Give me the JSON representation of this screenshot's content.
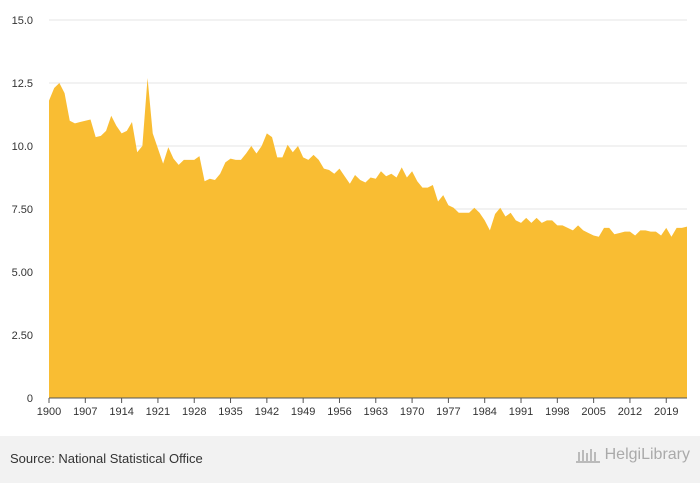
{
  "chart_data": {
    "type": "area",
    "title": "",
    "xlabel": "",
    "ylabel": "",
    "xlim": [
      1900,
      2023
    ],
    "ylim": [
      0,
      15
    ],
    "x_ticks": [
      "1900",
      "1907",
      "1914",
      "1921",
      "1928",
      "1935",
      "1942",
      "1949",
      "1956",
      "1963",
      "1970",
      "1977",
      "1984",
      "1991",
      "1998",
      "2005",
      "2012",
      "2019"
    ],
    "y_ticks": [
      "0",
      "2.50",
      "5.00",
      "7.50",
      "10.0",
      "12.5",
      "15.0"
    ],
    "grid": "horizontal",
    "color": "#f9bd33",
    "series": [
      {
        "x": [
          1900,
          1901,
          1902,
          1903,
          1904,
          1905,
          1906,
          1907,
          1908,
          1909,
          1910,
          1911,
          1912,
          1913,
          1914,
          1915,
          1916,
          1917,
          1918,
          1919,
          1920,
          1921,
          1922,
          1923,
          1924,
          1925,
          1926,
          1927,
          1928,
          1929,
          1930,
          1931,
          1932,
          1933,
          1934,
          1935,
          1936,
          1937,
          1938,
          1939,
          1940,
          1941,
          1942,
          1943,
          1944,
          1945,
          1946,
          1947,
          1948,
          1949,
          1950,
          1951,
          1952,
          1953,
          1954,
          1955,
          1956,
          1957,
          1958,
          1959,
          1960,
          1961,
          1962,
          1963,
          1964,
          1965,
          1966,
          1967,
          1968,
          1969,
          1970,
          1971,
          1972,
          1973,
          1974,
          1975,
          1976,
          1977,
          1978,
          1979,
          1980,
          1981,
          1982,
          1983,
          1984,
          1985,
          1986,
          1987,
          1988,
          1989,
          1990,
          1991,
          1992,
          1993,
          1994,
          1995,
          1996,
          1997,
          1998,
          1999,
          2000,
          2001,
          2002,
          2003,
          2004,
          2005,
          2006,
          2007,
          2008,
          2009,
          2010,
          2011,
          2012,
          2013,
          2014,
          2015,
          2016,
          2017,
          2018,
          2019,
          2020,
          2021,
          2022,
          2023
        ],
        "values": [
          11.8,
          12.3,
          12.5,
          12.1,
          11.0,
          10.9,
          10.95,
          11.0,
          11.05,
          10.35,
          10.4,
          10.6,
          11.2,
          10.8,
          10.5,
          10.6,
          10.95,
          9.75,
          10.0,
          12.7,
          10.5,
          9.9,
          9.3,
          9.95,
          9.5,
          9.25,
          9.45,
          9.45,
          9.45,
          9.6,
          8.6,
          8.7,
          8.65,
          8.9,
          9.35,
          9.5,
          9.45,
          9.45,
          9.7,
          10.0,
          9.7,
          10.0,
          10.5,
          10.35,
          9.55,
          9.55,
          10.05,
          9.75,
          10.0,
          9.55,
          9.45,
          9.65,
          9.45,
          9.1,
          9.05,
          8.9,
          9.1,
          8.8,
          8.5,
          8.85,
          8.65,
          8.55,
          8.75,
          8.7,
          9.0,
          8.8,
          8.9,
          8.75,
          9.15,
          8.75,
          9.0,
          8.6,
          8.35,
          8.35,
          8.45,
          7.8,
          8.05,
          7.65,
          7.55,
          7.35,
          7.35,
          7.35,
          7.55,
          7.35,
          7.05,
          6.65,
          7.3,
          7.55,
          7.2,
          7.35,
          7.05,
          6.95,
          7.15,
          6.95,
          7.15,
          6.95,
          7.05,
          7.05,
          6.85,
          6.85,
          6.75,
          6.65,
          6.85,
          6.65,
          6.55,
          6.45,
          6.4,
          6.75,
          6.75,
          6.5,
          6.55,
          6.6,
          6.6,
          6.45,
          6.65,
          6.65,
          6.6,
          6.6,
          6.45,
          6.75,
          6.4,
          6.75,
          6.75,
          6.8
        ]
      }
    ]
  },
  "footer": {
    "source": "Source: National Statistical Office",
    "brand": "HelgiLibrary"
  }
}
